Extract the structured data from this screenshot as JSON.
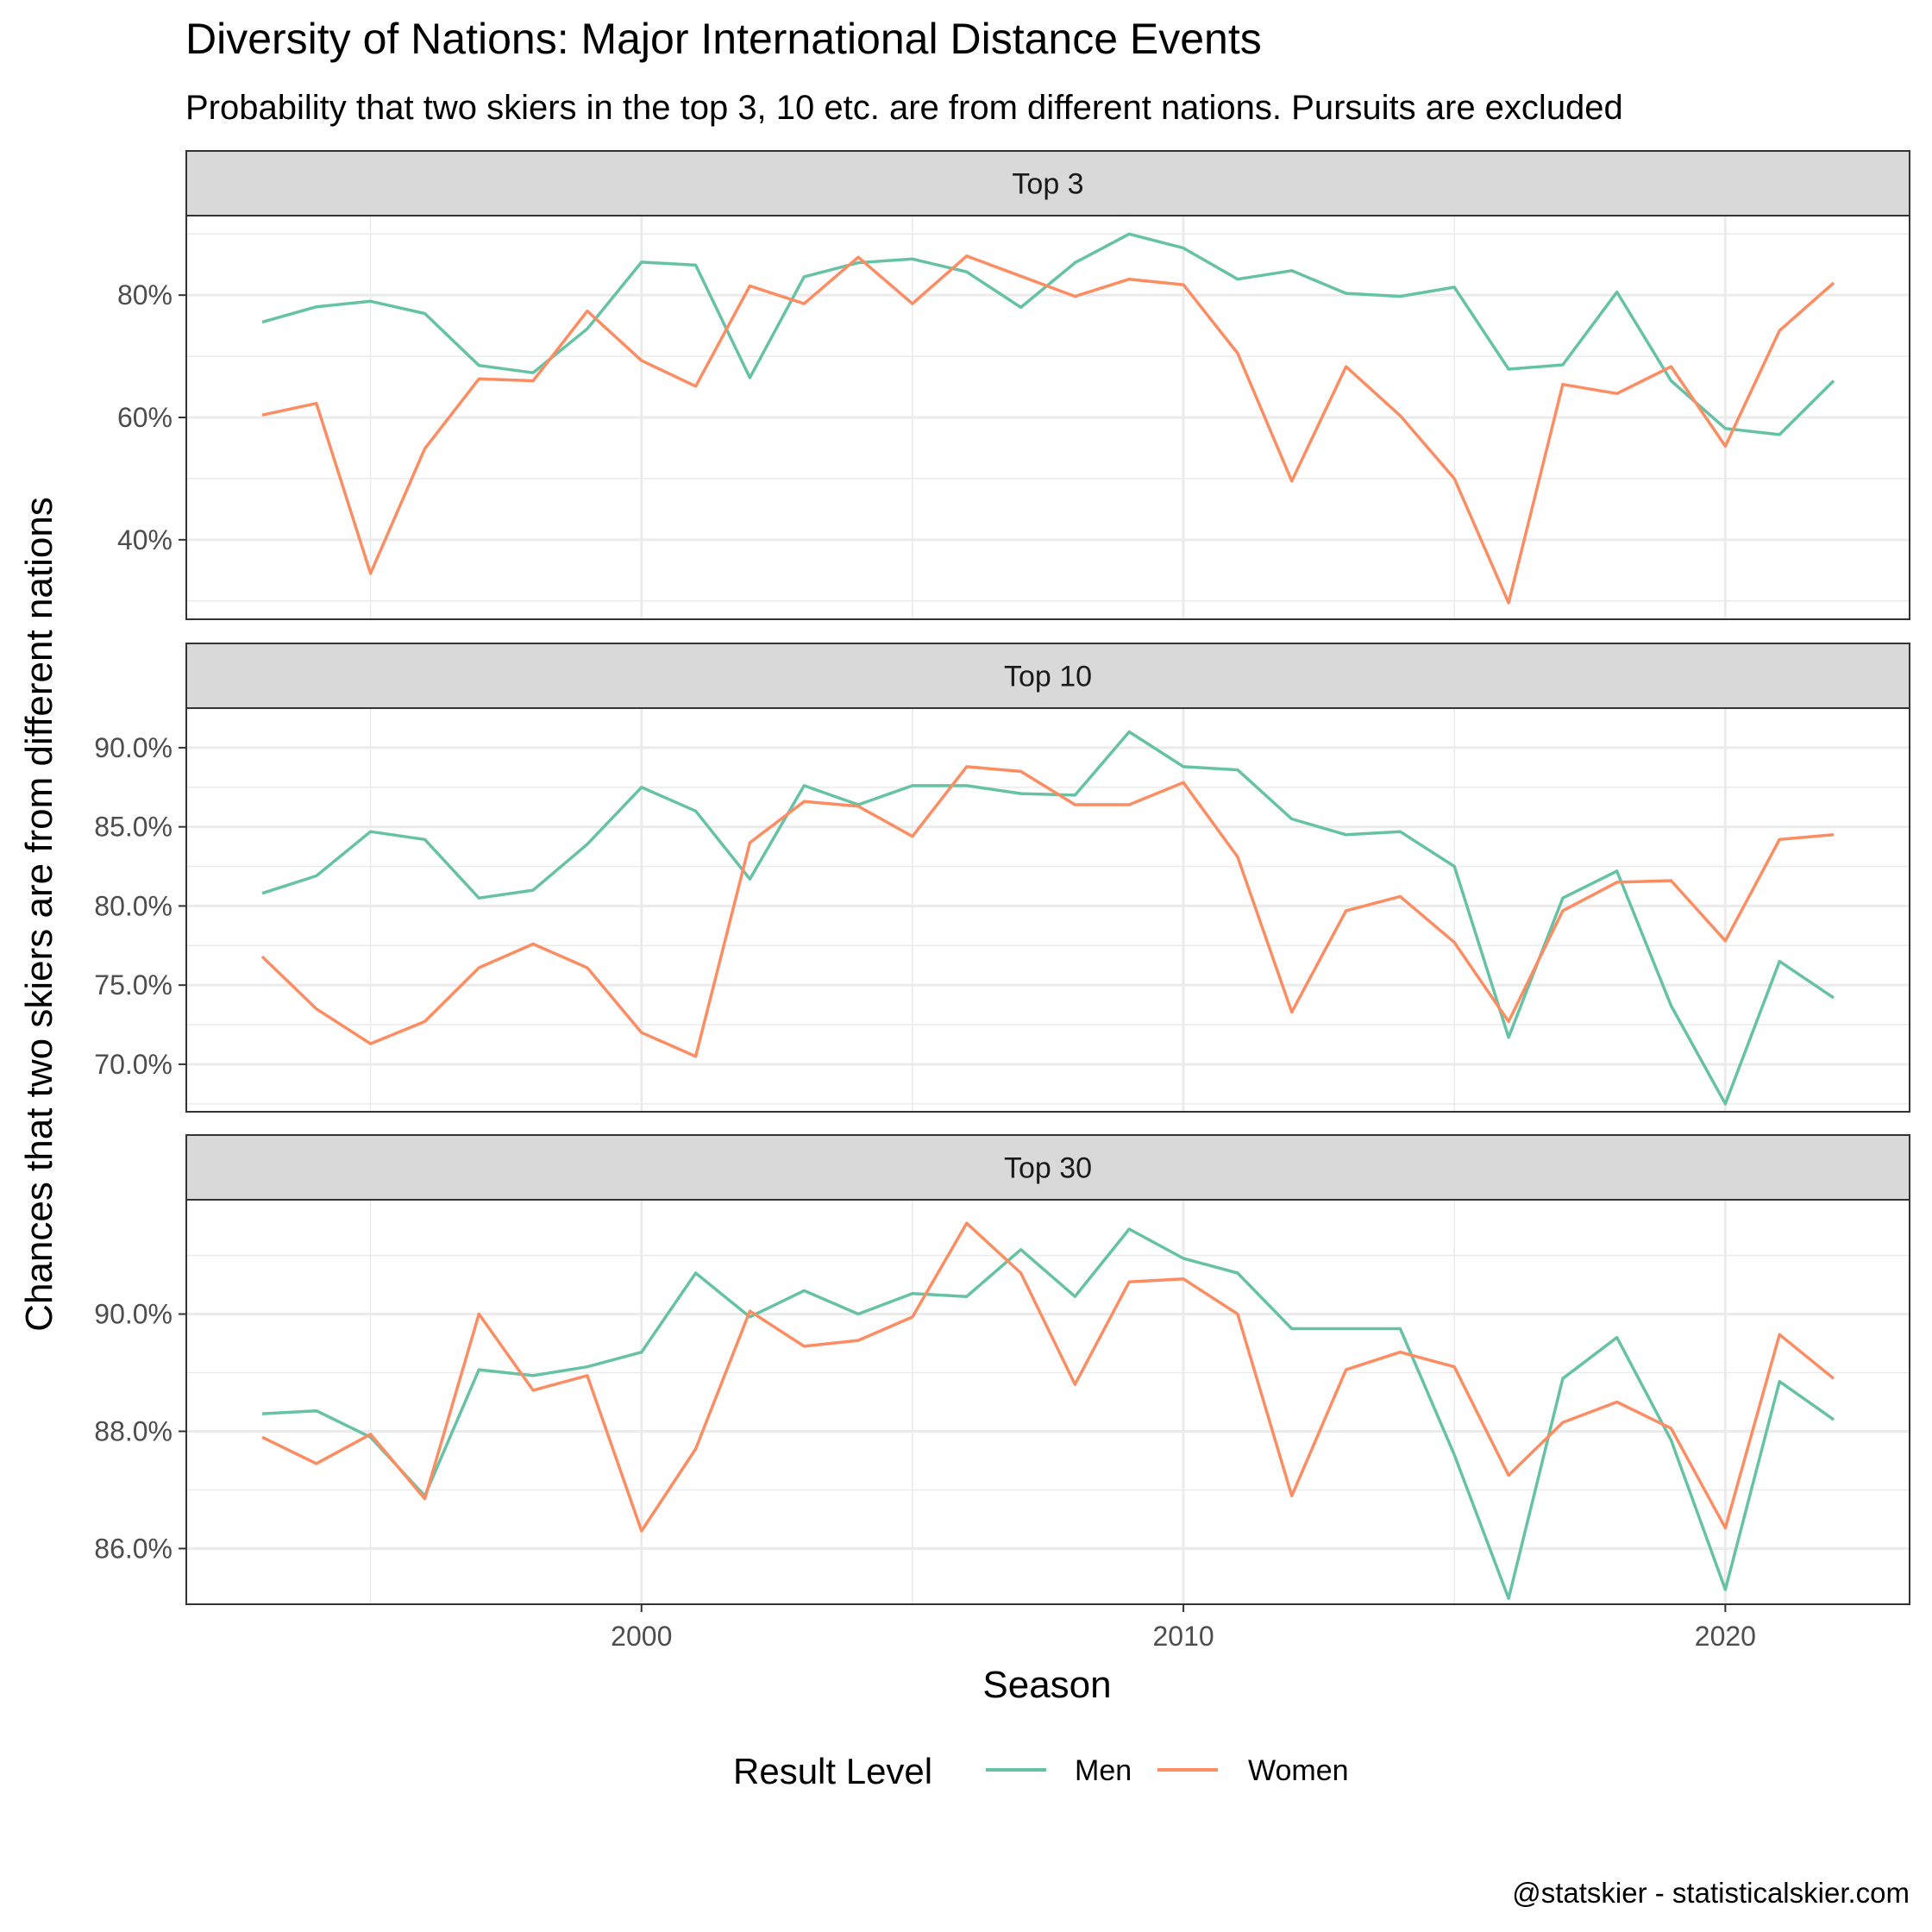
{
  "title": "Diversity of Nations: Major International Distance Events",
  "subtitle": "Probability that two skiers in the top 3, 10 etc. are from different nations. Pursuits are excluded",
  "caption": "@statskier - statisticalskier.com",
  "legend": {
    "title": "Result Level",
    "position": "bottom"
  },
  "colors": {
    "Men": "#66c2a5",
    "Women": "#fc8d62"
  },
  "chart_data": {
    "type": "line",
    "xlabel": "Season",
    "ylabel": "Chances that two skiers are from different nations",
    "x": [
      1993,
      1994,
      1995,
      1996,
      1997,
      1998,
      1999,
      2000,
      2001,
      2002,
      2003,
      2004,
      2005,
      2006,
      2007,
      2008,
      2009,
      2010,
      2011,
      2012,
      2013,
      2014,
      2015,
      2016,
      2017,
      2018,
      2019,
      2020,
      2021,
      2022
    ],
    "xlim": [
      1991.6,
      2023.4
    ],
    "xticks": [
      2000,
      2010,
      2020
    ],
    "xtick_labels": [
      "2000",
      "2010",
      "2020"
    ],
    "grid": true,
    "panels": [
      {
        "strip": "Top 3",
        "ylim": [
          0.27,
          0.93
        ],
        "yticks": [
          0.4,
          0.6,
          0.8
        ],
        "ytick_labels": [
          "40%",
          "60%",
          "80%"
        ],
        "series": [
          {
            "name": "Men",
            "values": [
              0.756,
              0.781,
              0.79,
              0.77,
              0.685,
              0.673,
              0.745,
              0.854,
              0.849,
              0.665,
              0.83,
              0.853,
              0.859,
              0.838,
              0.78,
              0.853,
              0.9,
              0.877,
              0.826,
              0.84,
              0.803,
              0.798,
              0.813,
              0.679,
              0.686,
              0.805,
              0.66,
              0.582,
              0.572,
              0.66
            ]
          },
          {
            "name": "Women",
            "values": [
              0.604,
              0.623,
              0.345,
              0.549,
              0.663,
              0.66,
              0.774,
              0.693,
              0.651,
              0.815,
              0.786,
              0.862,
              0.786,
              0.864,
              0.831,
              0.798,
              0.826,
              0.817,
              0.705,
              0.496,
              0.683,
              0.603,
              0.5,
              0.297,
              0.654,
              0.639,
              0.683,
              0.553,
              0.742,
              0.82
            ]
          }
        ]
      },
      {
        "strip": "Top 10",
        "ylim": [
          0.67,
          0.925
        ],
        "yticks": [
          0.7,
          0.75,
          0.8,
          0.85,
          0.9
        ],
        "ytick_labels": [
          "70.0%",
          "75.0%",
          "80.0%",
          "85.0%",
          "90.0%"
        ],
        "series": [
          {
            "name": "Men",
            "values": [
              0.808,
              0.819,
              0.847,
              0.842,
              0.805,
              0.81,
              0.839,
              0.875,
              0.86,
              0.817,
              0.876,
              0.864,
              0.876,
              0.876,
              0.871,
              0.87,
              0.91,
              0.888,
              0.886,
              0.855,
              0.845,
              0.847,
              0.825,
              0.717,
              0.805,
              0.822,
              0.737,
              0.675,
              0.765,
              0.742
            ]
          },
          {
            "name": "Women",
            "values": [
              0.768,
              0.735,
              0.713,
              0.727,
              0.761,
              0.776,
              0.761,
              0.72,
              0.705,
              0.84,
              0.866,
              0.863,
              0.844,
              0.888,
              0.885,
              0.864,
              0.864,
              0.878,
              0.831,
              0.733,
              0.797,
              0.806,
              0.777,
              0.727,
              0.797,
              0.815,
              0.816,
              0.778,
              0.842,
              0.845
            ]
          }
        ]
      },
      {
        "strip": "Top 30",
        "ylim": [
          0.8505,
          0.9195
        ],
        "yticks": [
          0.86,
          0.88,
          0.9
        ],
        "ytick_labels": [
          "86.0%",
          "88.0%",
          "90.0%"
        ],
        "series": [
          {
            "name": "Men",
            "values": [
              0.883,
              0.8835,
              0.879,
              0.869,
              0.8905,
              0.8895,
              0.891,
              0.8935,
              0.907,
              0.8995,
              0.904,
              0.9,
              0.9035,
              0.903,
              0.911,
              0.903,
              0.9145,
              0.9095,
              0.907,
              0.8975,
              0.8975,
              0.8975,
              0.876,
              0.8515,
              0.889,
              0.896,
              0.8785,
              0.853,
              0.8885,
              0.882
            ]
          },
          {
            "name": "Women",
            "values": [
              0.879,
              0.8745,
              0.8795,
              0.8685,
              0.9,
              0.887,
              0.8895,
              0.863,
              0.877,
              0.9005,
              0.8945,
              0.8955,
              0.8995,
              0.9155,
              0.907,
              0.888,
              0.9055,
              0.906,
              0.9,
              0.869,
              0.8905,
              0.8935,
              0.891,
              0.8725,
              0.8815,
              0.885,
              0.8805,
              0.8635,
              0.8965,
              0.889
            ]
          }
        ]
      }
    ]
  }
}
